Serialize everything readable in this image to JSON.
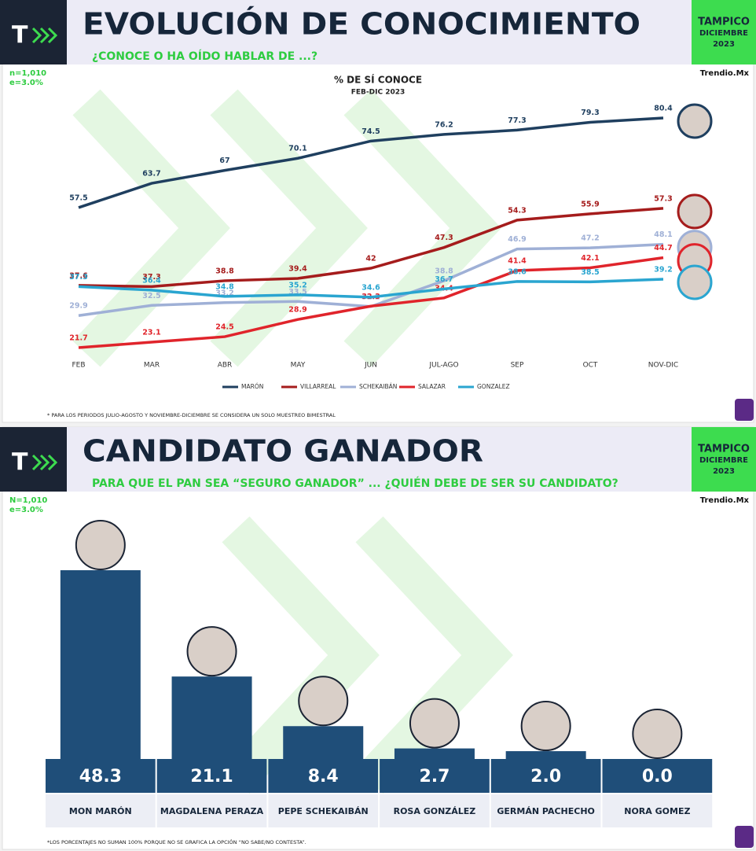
{
  "chart_data": [
    {
      "type": "line",
      "logo": "T",
      "header_title": "EVOLUCIÓN DE CONOCIMIENTO",
      "header_subtitle": "¿CONOCE O HA OÍDO HABLAR DE ...?",
      "badge": [
        "TAMPICO",
        "DICIEMBRE",
        "2023"
      ],
      "sample": "n=1,010",
      "margin": "e=3.0%",
      "source": "Trendio.Mx",
      "title": "% DE SÍ CONOCE",
      "subtitle": "FEB-DIC 2023",
      "footnote": "* PARA LOS PERIODOS JULIO-AGOSTO Y NOVIEMBRE-DICIEMBRE SE CONSIDERA UN SOLO MUESTREO BIMESTRAL",
      "categories": [
        "FEB",
        "MAR",
        "ABR",
        "MAY",
        "JUN",
        "JUL-AGO",
        "SEP",
        "OCT",
        "NOV-DIC"
      ],
      "series": [
        {
          "name": "MARÓN",
          "color": "#1f3f5f",
          "values": [
            57.5,
            63.7,
            67,
            70.1,
            74.5,
            76.2,
            77.3,
            79.3,
            80.4
          ]
        },
        {
          "name": "VILLARREAL",
          "color": "#a51c1c",
          "values": [
            37.6,
            37.3,
            38.8,
            39.4,
            42,
            47.3,
            54.3,
            55.9,
            57.3
          ]
        },
        {
          "name": "SCHEKAIBÁN",
          "color": "#9fb0d6",
          "values": [
            29.9,
            32.5,
            33.2,
            33.5,
            32.2,
            38.8,
            46.9,
            47.2,
            48.1
          ]
        },
        {
          "name": "SALAZAR",
          "color": "#e0242b",
          "values": [
            21.7,
            23.1,
            24.5,
            28.9,
            32.3,
            34.4,
            41.4,
            42.1,
            44.7
          ]
        },
        {
          "name": "GONZALEZ",
          "color": "#2aa5d0",
          "values": [
            37.3,
            36.4,
            34.8,
            35.2,
            34.6,
            36.7,
            38.6,
            38.5,
            39.2
          ]
        }
      ]
    },
    {
      "type": "bar",
      "logo": "T",
      "header_title": "CANDIDATO GANADOR",
      "header_subtitle": "PARA QUE EL PAN SEA “SEGURO GANADOR” ... ¿QUIÉN DEBE DE SER SU CANDIDATO?",
      "badge": [
        "TAMPICO",
        "DICIEMBRE",
        "2023"
      ],
      "sample": "N=1,010",
      "margin": "e=3.0%",
      "source": "Trendio.Mx",
      "footnote": "*LOS PORCENTAJES NO SUMAN 100% PORQUE NO SE GRAFICA LA OPCIÓN “NO SABE/NO CONTESTA”.",
      "categories": [
        "MON MARÓN",
        "MAGDALENA PERAZA",
        "PEPE SCHEKAIBÁN",
        "ROSA GONZÁLEZ",
        "GERMÁN PACHECHO",
        "NORA GOMEZ"
      ],
      "values": [
        48.3,
        21.1,
        8.4,
        2.7,
        2.0,
        0.0
      ],
      "value_labels": [
        "48.3",
        "21.1",
        "8.4",
        "2.7",
        "2.0",
        "0.0"
      ],
      "color": "#1f4e79"
    }
  ]
}
